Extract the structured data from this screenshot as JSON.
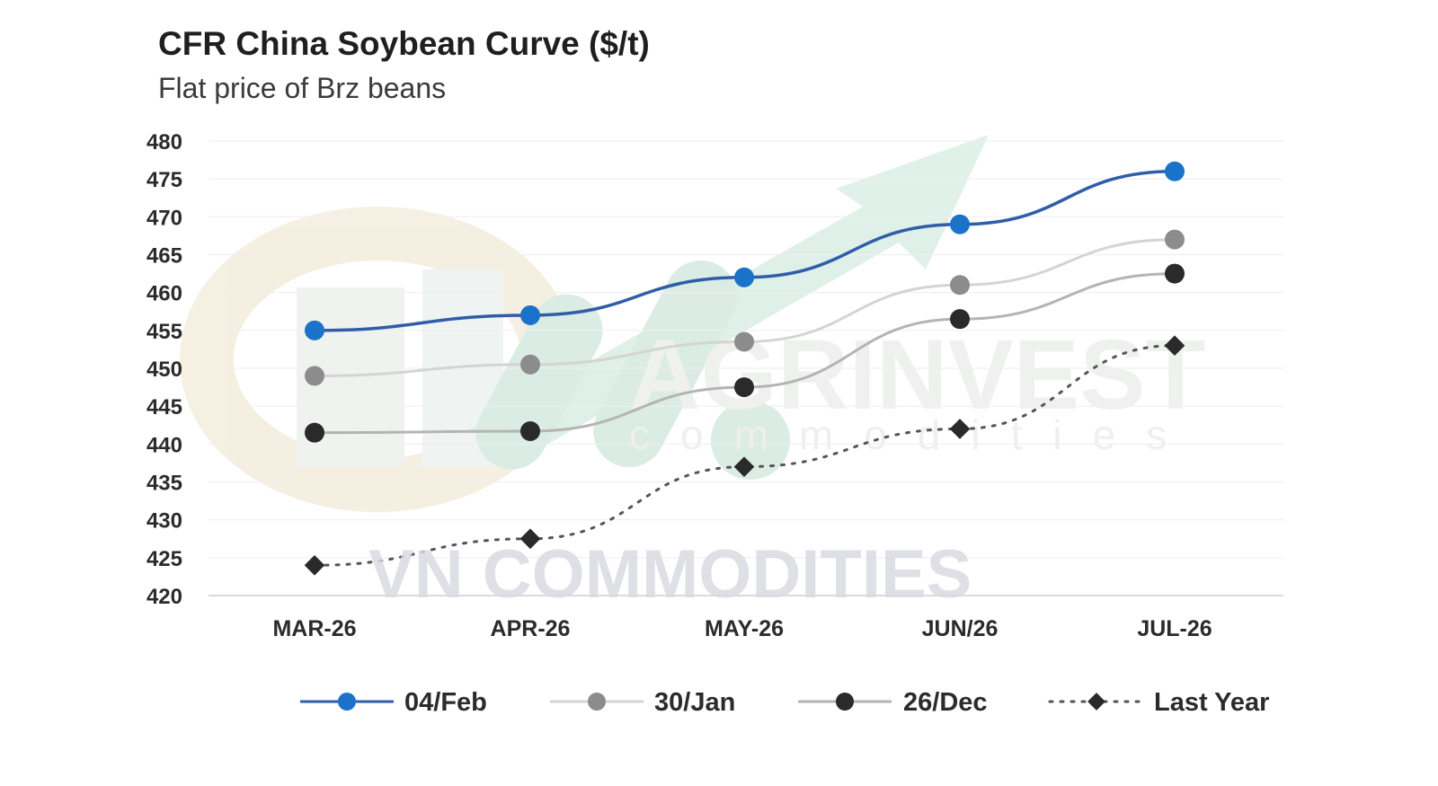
{
  "chart_data": {
    "type": "line",
    "title": "CFR China Soybean Curve ($/t)",
    "subtitle": "Flat price of Brz beans",
    "categories": [
      "MAR-26",
      "APR-26",
      "MAY-26",
      "JUN/26",
      "JUL-26"
    ],
    "ylim": [
      420,
      480
    ],
    "yticks": [
      420,
      425,
      430,
      435,
      440,
      445,
      450,
      455,
      460,
      465,
      470,
      475,
      480
    ],
    "grid": true,
    "legend_position": "bottom",
    "series": [
      {
        "name": "04/Feb",
        "values": [
          455,
          457,
          462,
          469,
          476
        ],
        "color": "#2f5da8",
        "marker": "#1a73c9",
        "style": "solid"
      },
      {
        "name": "30/Jan",
        "values": [
          449,
          450.5,
          453.5,
          461,
          467
        ],
        "color": "#d4d4d4",
        "marker": "#8c8c8c",
        "style": "solid"
      },
      {
        "name": "26/Dec",
        "values": [
          441.5,
          441.7,
          447.5,
          456.5,
          462.5
        ],
        "color": "#b4b4b4",
        "marker": "#2a2a2a",
        "style": "solid"
      },
      {
        "name": "Last Year",
        "values": [
          424,
          427.5,
          437,
          442,
          453
        ],
        "color": "#555555",
        "marker": "#2a2a2a",
        "style": "dotted"
      }
    ]
  },
  "watermarks": {
    "brand": "AGRINVEST",
    "brand_sub": "commodities",
    "overlay": "VN COMMODITIES"
  }
}
